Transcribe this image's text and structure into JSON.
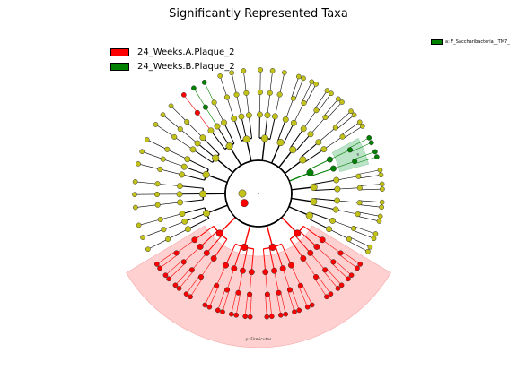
{
  "chart_data": {
    "type": "cladogram",
    "title": "Significantly Represented Taxa",
    "legend": [
      {
        "label": "24_Weeks.A.Plaque_2",
        "color": "#ff0000"
      },
      {
        "label": "24_Weeks.B.Plaque_2",
        "color": "#008000"
      }
    ],
    "side_legend": {
      "label": "a: F_Saccharibacteria__TM7_",
      "color": "#008000"
    },
    "highlighted_clades": [
      {
        "label": "p: Firmicutes",
        "group": "24_Weeks.A.Plaque_2",
        "color": "#ffcccc",
        "angle_start": 121,
        "angle_end": 239
      },
      {
        "label": "a",
        "group": "24_Weeks.B.Plaque_2",
        "color": "#b3e0c2",
        "angle_start": 61,
        "angle_end": 75
      }
    ],
    "marker_colors": {
      "neutral": "#c2c218",
      "group_a": "#ff0000",
      "group_b": "#008000"
    },
    "rings": 5,
    "phyla": [
      {
        "angle_start": -60,
        "angle_end": 16,
        "classes": 4,
        "significant": null
      },
      {
        "angle_start": 16,
        "angle_end": 60,
        "classes": 3,
        "significant": null
      },
      {
        "angle_start": 60,
        "angle_end": 76,
        "classes": 1,
        "significant": "24_Weeks.B.Plaque_2"
      },
      {
        "angle_start": 76,
        "angle_end": 121,
        "classes": 3,
        "significant": null
      },
      {
        "angle_start": 121,
        "angle_end": 239,
        "classes": 4,
        "significant": "24_Weeks.A.Plaque_2"
      },
      {
        "angle_start": 239,
        "angle_end": 300,
        "classes": 3,
        "significant": null
      }
    ],
    "significant_branches": [
      {
        "angle": 125,
        "level": 1,
        "group": "24_Weeks.A.Plaque_2"
      },
      {
        "angle": 325,
        "level": 4,
        "group": "24_Weeks.A.Plaque_2"
      },
      {
        "angle": 322,
        "level": 5,
        "group": "24_Weeks.A.Plaque_2"
      },
      {
        "angle": 319,
        "level": 5,
        "group": "24_Weeks.A.Plaque_2"
      },
      {
        "angle": 330,
        "level": 4,
        "group": "24_Weeks.B.Plaque_2"
      },
      {
        "angle": 333,
        "level": 5,
        "group": "24_Weeks.B.Plaque_2"
      },
      {
        "angle": 68,
        "level": 2,
        "group": "24_Weeks.B.Plaque_2"
      },
      {
        "angle": 70,
        "level": 3,
        "group": "24_Weeks.B.Plaque_2"
      },
      {
        "angle": 72,
        "level": 4,
        "group": "24_Weeks.B.Plaque_2"
      }
    ]
  }
}
